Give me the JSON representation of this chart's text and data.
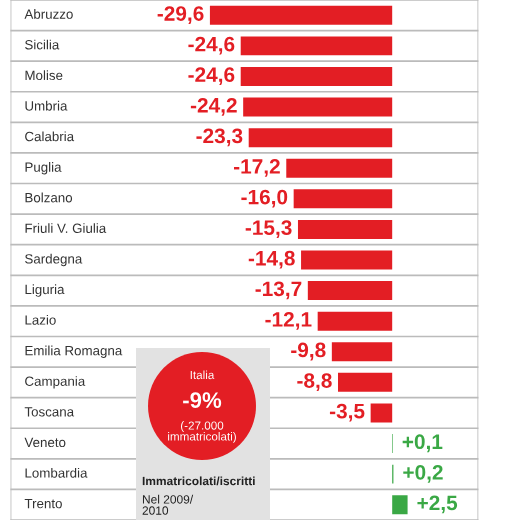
{
  "chart_data": {
    "type": "bar",
    "orientation": "horizontal",
    "categories": [
      "Abruzzo",
      "Sicilia",
      "Molise",
      "Umbria",
      "Calabria",
      "Puglia",
      "Bolzano",
      "Friuli V. Giulia",
      "Sardegna",
      "Liguria",
      "Lazio",
      "Emilia Romagna",
      "Campania",
      "Toscana",
      "Veneto",
      "Lombardia",
      "Trento"
    ],
    "values": [
      -29.6,
      -24.6,
      -24.6,
      -24.2,
      -23.3,
      -17.2,
      -16.0,
      -15.3,
      -14.8,
      -13.7,
      -12.1,
      -9.8,
      -8.8,
      -3.5,
      0.1,
      0.2,
      2.5
    ],
    "value_labels": [
      "-29,6",
      "-24,6",
      "-24,6",
      "-24,2",
      "-23,3",
      "-17,2",
      "-16,0",
      "-15,3",
      "-14,8",
      "-13,7",
      "-12,1",
      "-9,8",
      "-8,8",
      "-3,5",
      "+0,1",
      "+0,2",
      "+2,5"
    ],
    "colors": [
      "#e31e24",
      "#e31e24",
      "#e31e24",
      "#e31e24",
      "#e31e24",
      "#e31e24",
      "#e31e24",
      "#e31e24",
      "#e31e24",
      "#e31e24",
      "#e31e24",
      "#e31e24",
      "#e31e24",
      "#e31e24",
      "#3aa845",
      "#3aa845",
      "#3aa845"
    ],
    "xlim": [
      -62,
      14
    ],
    "annotations": [
      "Italia",
      "-9%",
      "(-27.000\nimmatricolati)",
      "Immatricolati/iscritti",
      "Nel 2009/\n2010"
    ]
  }
}
